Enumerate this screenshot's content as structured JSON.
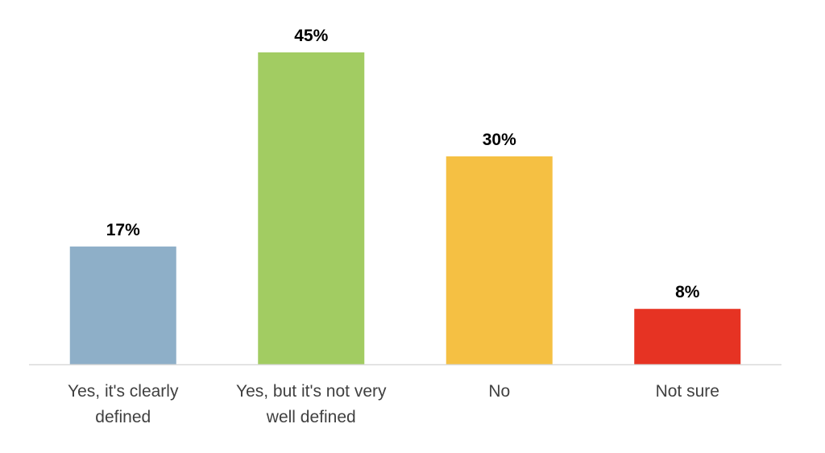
{
  "chart_data": {
    "type": "bar",
    "categories": [
      [
        "Yes, it's clearly",
        "defined"
      ],
      [
        "Yes, but it's not very",
        "well defined"
      ],
      [
        "No"
      ],
      [
        "Not sure"
      ]
    ],
    "values": [
      17,
      45,
      30,
      8
    ],
    "value_labels": [
      "17%",
      "45%",
      "30%",
      "8%"
    ],
    "colors": [
      "#8EAFC8",
      "#A2CC62",
      "#F5C043",
      "#E63323"
    ],
    "title": "",
    "xlabel": "",
    "ylabel": "",
    "ylim": [
      0,
      50
    ],
    "grid": false,
    "legend": "none",
    "axis_color": "#D9D9D9"
  }
}
